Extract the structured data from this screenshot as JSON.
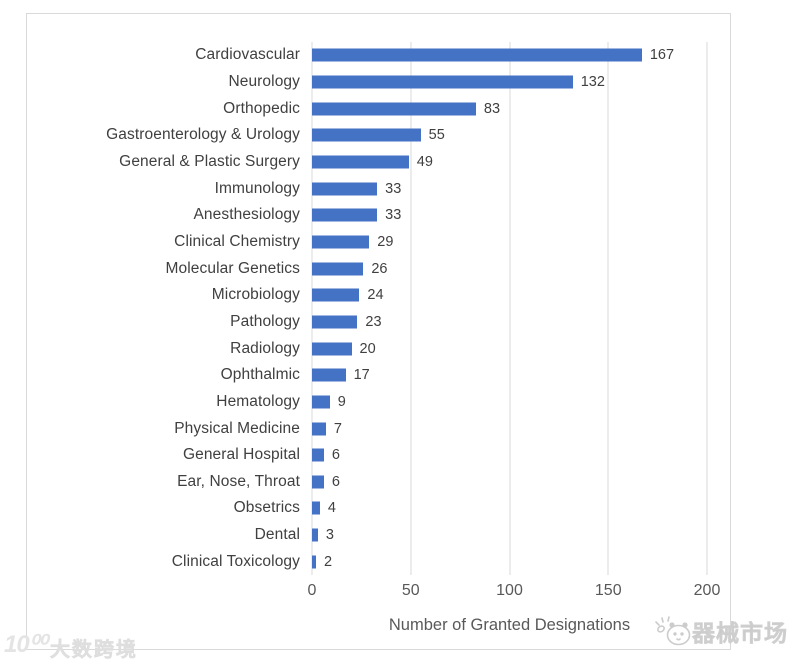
{
  "chart_data": {
    "type": "bar",
    "orientation": "horizontal",
    "xlabel": "Number of Granted Designations",
    "categories": [
      "Cardiovascular",
      "Neurology",
      "Orthopedic",
      "Gastroenterology & Urology",
      "General & Plastic Surgery",
      "Immunology",
      "Anesthesiology",
      "Clinical Chemistry",
      "Molecular Genetics",
      "Microbiology",
      "Pathology",
      "Radiology",
      "Ophthalmic",
      "Hematology",
      "Physical Medicine",
      "General Hospital",
      "Ear, Nose, Throat",
      "Obsetrics",
      "Dental",
      "Clinical Toxicology"
    ],
    "values": [
      167,
      132,
      83,
      55,
      49,
      33,
      33,
      29,
      26,
      24,
      23,
      20,
      17,
      9,
      7,
      6,
      6,
      4,
      3,
      2
    ],
    "x_ticks": [
      0,
      50,
      100,
      150,
      200
    ],
    "xlim": [
      0,
      200
    ],
    "grid": true,
    "legend": false,
    "data_labels": true,
    "bar_color": "#4472C4",
    "gridline_color": "#D9D9D9",
    "label_color": "#404040",
    "tick_color": "#595959",
    "frame_border_color": "#D9D9D9"
  },
  "watermarks": {
    "bottom_left_logo": "10⁰⁰",
    "bottom_left_text": "大数跨境",
    "bottom_right_text": "器械市场"
  }
}
